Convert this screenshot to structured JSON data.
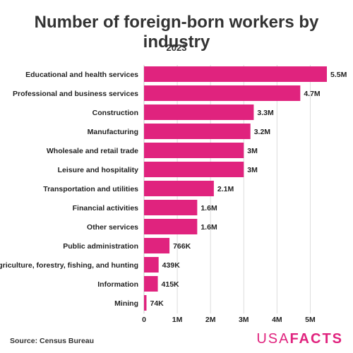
{
  "chart_data": {
    "type": "bar",
    "orientation": "horizontal",
    "title": "Number of foreign-born workers by industry",
    "subtitle": "2023",
    "categories": [
      "Educational and health services",
      "Professional and business services",
      "Construction",
      "Manufacturing",
      "Wholesale and retail trade",
      "Leisure and hospitality",
      "Transportation and utilities",
      "Financial activities",
      "Other services",
      "Public administration",
      "Agriculture, forestry, fishing, and hunting",
      "Information",
      "Mining"
    ],
    "values": [
      5500000,
      4700000,
      3300000,
      3200000,
      3000000,
      3000000,
      2100000,
      1600000,
      1600000,
      766000,
      439000,
      415000,
      74000
    ],
    "value_labels": [
      "5.5M",
      "4.7M",
      "3.3M",
      "3.2M",
      "3M",
      "3M",
      "2.1M",
      "1.6M",
      "1.6M",
      "766K",
      "439K",
      "415K",
      "74K"
    ],
    "xlim": [
      0,
      5500000
    ],
    "x_ticks": [
      0,
      1000000,
      2000000,
      3000000,
      4000000,
      5000000
    ],
    "x_tick_labels": [
      "0",
      "1M",
      "2M",
      "3M",
      "4M",
      "5M"
    ],
    "grid": true,
    "bar_color": "#e0237e"
  },
  "footer": {
    "source": "Source: Census Bureau",
    "logo_light": "USA",
    "logo_bold": "FACTS"
  }
}
